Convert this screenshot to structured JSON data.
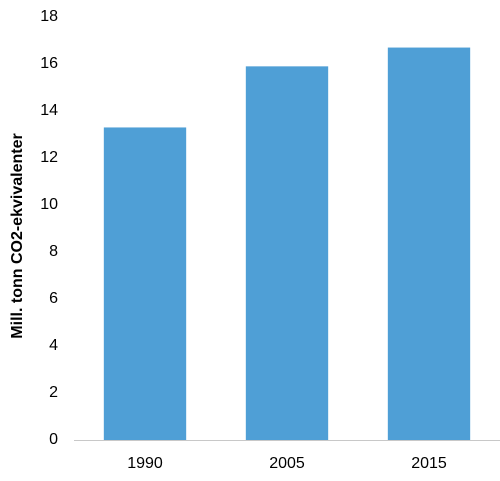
{
  "chart_data": {
    "type": "bar",
    "title": "",
    "xlabel": "",
    "ylabel": "Mill. tonn CO2-ekvivalenter",
    "categories": [
      "1990",
      "2005",
      "2015"
    ],
    "values": [
      13.3,
      15.9,
      16.7
    ],
    "ylim": [
      0,
      18
    ],
    "yticks": [
      0,
      2,
      4,
      6,
      8,
      10,
      12,
      14,
      16,
      18
    ],
    "bar_color": "#4f9fd6",
    "grid": false,
    "legend": "none"
  }
}
